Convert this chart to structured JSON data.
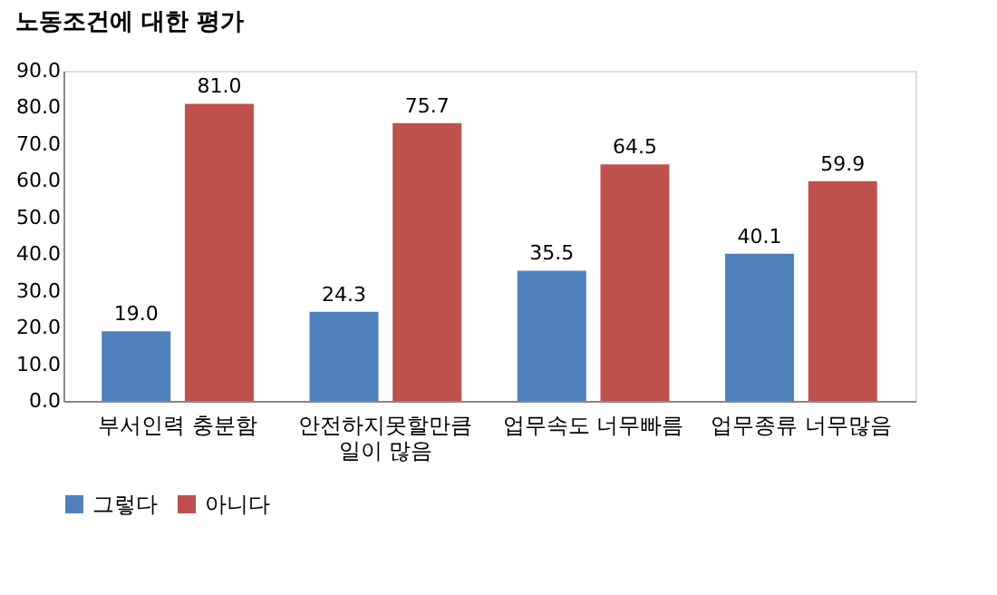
{
  "chart_data": {
    "type": "bar",
    "title": "노동조건에 대한 평가",
    "categories": [
      "부서인력 충분함",
      "안전하지못할만큼\n일이 많음",
      "업무속도 너무빠름",
      "업무종류 너무많음"
    ],
    "series": [
      {
        "name": "그렇다",
        "color": "#4f81bd",
        "values": [
          19.0,
          24.3,
          35.5,
          40.1
        ],
        "value_labels": [
          "19.0",
          "24.3",
          "35.5",
          "40.1"
        ]
      },
      {
        "name": "아니다",
        "color": "#c0504d",
        "values": [
          81.0,
          75.7,
          64.5,
          59.9
        ],
        "value_labels": [
          "81.0",
          "75.7",
          "64.5",
          "59.9"
        ]
      }
    ],
    "ylim": [
      0,
      90
    ],
    "yticks": [
      {
        "value": 0,
        "label": "0.0"
      },
      {
        "value": 10,
        "label": "10.0"
      },
      {
        "value": 20,
        "label": "20.0"
      },
      {
        "value": 30,
        "label": "30.0"
      },
      {
        "value": 40,
        "label": "40.0"
      },
      {
        "value": 50,
        "label": "50.0"
      },
      {
        "value": 60,
        "label": "60.0"
      },
      {
        "value": 70,
        "label": "70.0"
      },
      {
        "value": 80,
        "label": "80.0"
      },
      {
        "value": 90,
        "label": "90.0"
      }
    ],
    "data_labels": true,
    "grid": false,
    "legend": "bottom"
  }
}
